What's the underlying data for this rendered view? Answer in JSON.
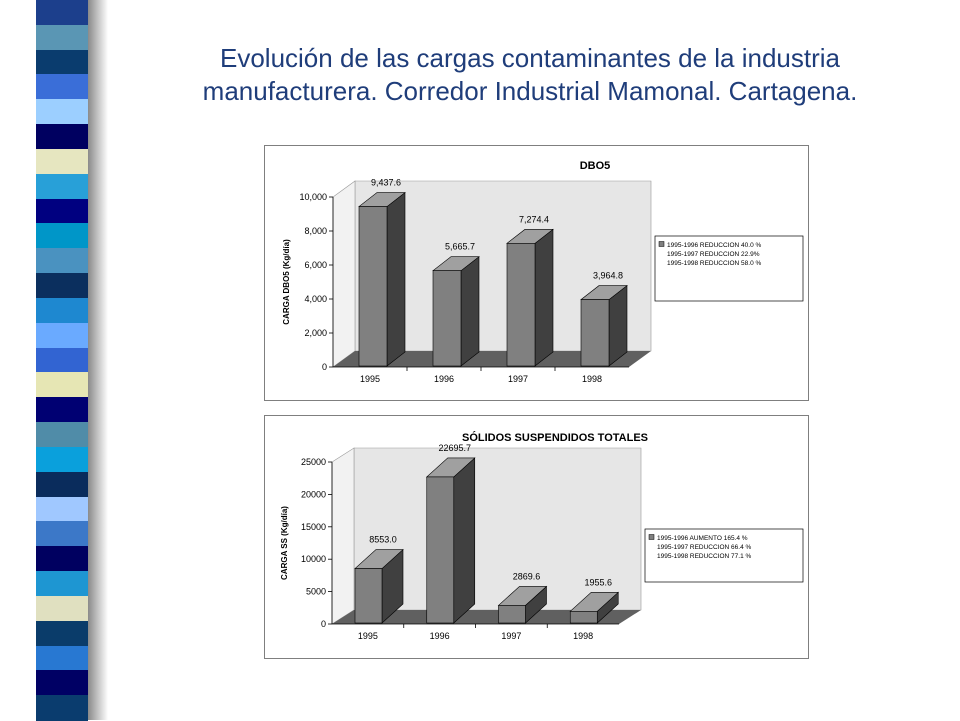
{
  "slide": {
    "title": "Evolución de las cargas contaminantes de la industria manufacturera. Corredor Industrial Mamonal. Cartagena."
  },
  "stripe_colors": [
    "#1c3f8c",
    "#5a96b4",
    "#0a3c6e",
    "#3a6ed8",
    "#9ccfff",
    "#000060",
    "#e6e6c0",
    "#28a0d8",
    "#000080",
    "#0096c8",
    "#4a92c0",
    "#0b2f5e",
    "#1e88d0",
    "#6aaaff",
    "#3264d2",
    "#e6e6b4",
    "#000072",
    "#508ca8",
    "#0aa0dc",
    "#0a2c5c",
    "#a0c8ff",
    "#3c78c8",
    "#000060",
    "#1e96d2",
    "#e0e0c0",
    "#0a3c6a",
    "#2878d2",
    "#000064",
    "#0a3c6e"
  ],
  "chart_data": [
    {
      "type": "bar",
      "title": "DBO5",
      "ylabel": "CARGA DBO5 (Kg/día)",
      "categories": [
        "1995",
        "1996",
        "1997",
        "1998"
      ],
      "values": [
        9437.6,
        5665.7,
        7274.4,
        3964.8
      ],
      "value_labels": [
        "9,437.6",
        "5,665.7",
        "7,274.4",
        "3,964.8"
      ],
      "ylim": [
        0,
        10000
      ],
      "yticks": [
        0,
        2000,
        4000,
        6000,
        8000,
        10000
      ],
      "ytick_labels": [
        "0",
        "2,000",
        "4,000",
        "6,000",
        "8,000",
        "10,000"
      ],
      "legend": [
        "1995-1996 REDUCCION  40.0 %",
        "1995-1997 REDUCCION  22.9%",
        "1995-1998 REDUCCION  58.0 %"
      ],
      "legend_position": "right",
      "colors": {
        "front": "#808080",
        "side": "#404040",
        "top": "#a0a0a0",
        "floor": "#606060",
        "wall": "#e6e6e6"
      }
    },
    {
      "type": "bar",
      "title": "SÓLIDOS SUSPENDIDOS TOTALES",
      "ylabel": "CARGA SS (Kg/día)",
      "categories": [
        "1995",
        "1996",
        "1997",
        "1998"
      ],
      "values": [
        8553.0,
        22695.7,
        2869.6,
        1955.6
      ],
      "value_labels": [
        "8553.0",
        "22695.7",
        "2869.6",
        "1955.6"
      ],
      "ylim": [
        0,
        25000
      ],
      "yticks": [
        0,
        5000,
        10000,
        15000,
        20000,
        25000
      ],
      "ytick_labels": [
        "0",
        "5000",
        "10000",
        "15000",
        "20000",
        "25000"
      ],
      "legend": [
        "1995-1996 AUMENTO  165.4 %",
        "1995-1997 REDUCCION  66.4 %",
        "1995-1998 REDUCCION  77.1 %"
      ],
      "legend_position": "right",
      "colors": {
        "front": "#808080",
        "side": "#404040",
        "top": "#a0a0a0",
        "floor": "#606060",
        "wall": "#e6e6e6"
      }
    }
  ]
}
